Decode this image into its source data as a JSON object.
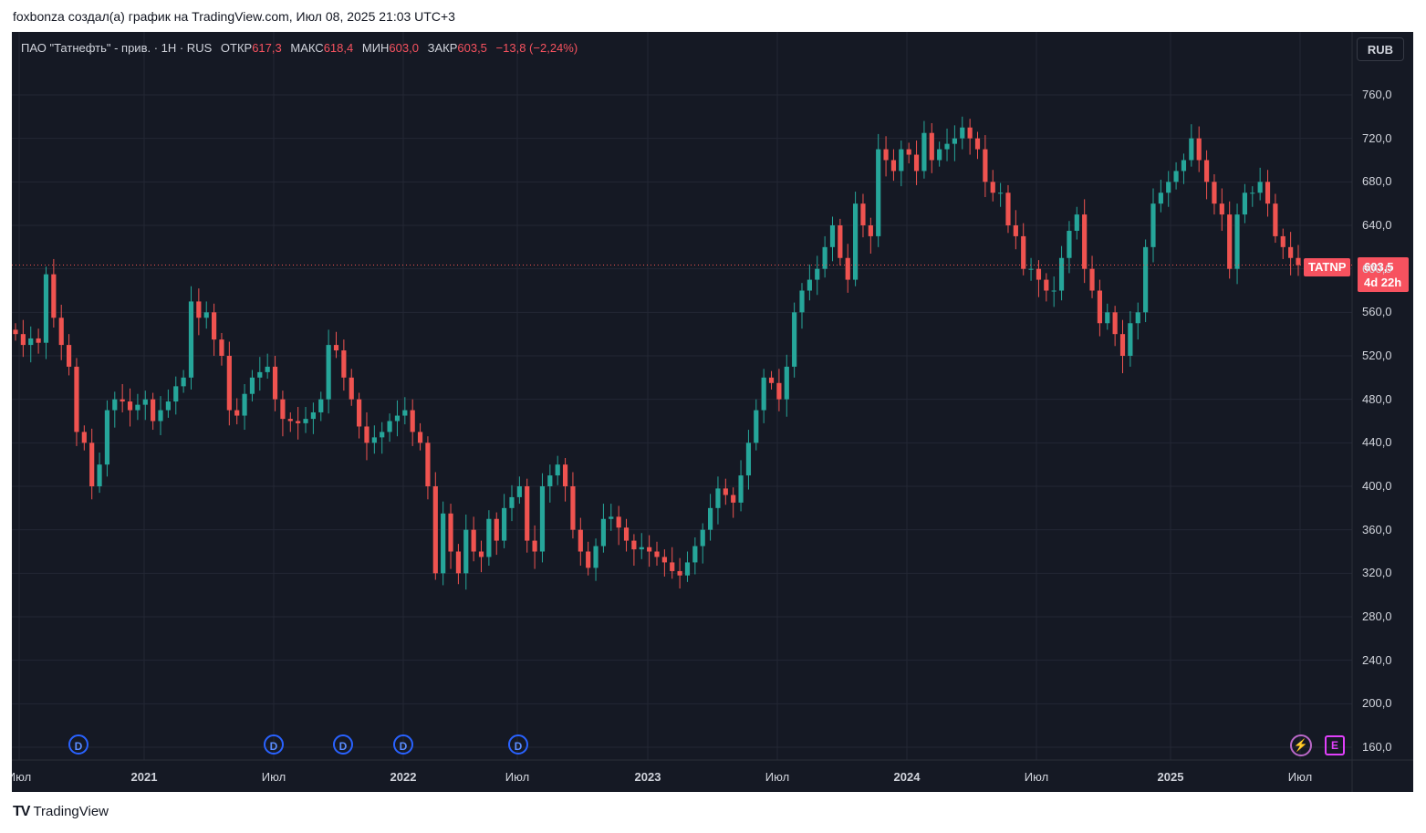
{
  "caption": "foxbonza создал(а) график на TradingView.com, Июл 08, 2025 21:03 UTC+3",
  "legend": {
    "instrument": "ПАО \"Татнефть\" - прив. · 1Н · RUS",
    "open_label": "ОТКР",
    "open": "617,3",
    "high_label": "МАКС",
    "high": "618,4",
    "low_label": "МИН",
    "low": "603,0",
    "close_label": "ЗАКР",
    "close": "603,5",
    "change": "−13,8 (−2,24%)"
  },
  "currency_button": "RUB",
  "symbol_tag": "TATNP",
  "last_price": "603,5",
  "countdown": "4d 22h",
  "y_ticks": [
    "760,0",
    "720,0",
    "680,0",
    "640,0",
    "600,0",
    "560,0",
    "520,0",
    "480,0",
    "440,0",
    "400,0",
    "360,0",
    "320,0",
    "280,0",
    "240,0",
    "200,0",
    "160,0"
  ],
  "x_ticks": [
    {
      "label": "Июл",
      "year": false
    },
    {
      "label": "2021",
      "year": true
    },
    {
      "label": "Июл",
      "year": false
    },
    {
      "label": "2022",
      "year": true
    },
    {
      "label": "Июл",
      "year": false
    },
    {
      "label": "2023",
      "year": true
    },
    {
      "label": "Июл",
      "year": false
    },
    {
      "label": "2024",
      "year": true
    },
    {
      "label": "Июл",
      "year": false
    },
    {
      "label": "2025",
      "year": true
    },
    {
      "label": "Июл",
      "year": false
    }
  ],
  "event_markers": [
    "D",
    "D",
    "D",
    "D",
    "D"
  ],
  "footer_brand": "TradingView",
  "footer_logo": "TV",
  "colors": {
    "up": "#26a69a",
    "down": "#ef5350",
    "bg": "#151924",
    "grid": "#232734",
    "text": "#d1d4dc",
    "accent": "#f7525f"
  },
  "chart_data": {
    "type": "candlestick",
    "title": "ПАО \"Татнефть\" - прив. · 1Н · RUS",
    "ylim": [
      160,
      790
    ],
    "grid": true,
    "legend": "top-left",
    "close_series": [
      540,
      530,
      536,
      532,
      595,
      555,
      530,
      510,
      450,
      440,
      400,
      420,
      470,
      480,
      478,
      470,
      475,
      480,
      460,
      470,
      478,
      492,
      500,
      570,
      555,
      560,
      535,
      520,
      470,
      465,
      485,
      500,
      505,
      510,
      480,
      462,
      460,
      458,
      462,
      468,
      480,
      530,
      525,
      500,
      480,
      455,
      440,
      445,
      450,
      460,
      465,
      470,
      450,
      440,
      400,
      320,
      375,
      340,
      320,
      360,
      340,
      335,
      370,
      350,
      380,
      390,
      400,
      350,
      340,
      400,
      410,
      420,
      400,
      360,
      340,
      325,
      345,
      370,
      372,
      362,
      350,
      342,
      344,
      340,
      335,
      330,
      322,
      318,
      330,
      345,
      360,
      380,
      398,
      392,
      385,
      410,
      440,
      470,
      500,
      495,
      480,
      510,
      560,
      580,
      590,
      600,
      620,
      640,
      610,
      590,
      660,
      640,
      630,
      710,
      700,
      690,
      710,
      705,
      690,
      725,
      700,
      710,
      715,
      720,
      730,
      720,
      710,
      680,
      670,
      670,
      640,
      630,
      600,
      600,
      590,
      580,
      580,
      610,
      635,
      650,
      600,
      580,
      550,
      560,
      540,
      520,
      550,
      560,
      620,
      660,
      670,
      680,
      690,
      700,
      720,
      700,
      680,
      660,
      650,
      600,
      650,
      670,
      670,
      680,
      660,
      630,
      620,
      610,
      603.5
    ]
  }
}
